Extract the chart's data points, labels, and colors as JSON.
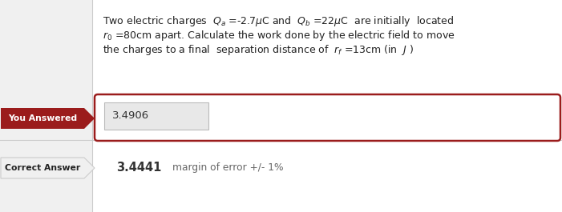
{
  "background_color": "#ffffff",
  "panel_bg_color": "#f0f0f0",
  "panel_border_color": "#cccccc",
  "label_bg_color": "#9b1c1c",
  "label_text_color": "#ffffff",
  "outer_box_edge_color": "#9b1c1c",
  "inner_box_fill_color": "#e8e8e8",
  "inner_box_edge_color": "#bbbbbb",
  "answer_text_color": "#333333",
  "correct_answer_color": "#333333",
  "margin_text_color": "#666666",
  "you_answered_label": "You Answered",
  "you_answered_value": "3.4906",
  "correct_answer_label": "Correct Answer",
  "correct_answer_value": "3.4441",
  "margin_of_error_text": "margin of error +/- 1%",
  "fig_width": 7.01,
  "fig_height": 2.65,
  "dpi": 100
}
